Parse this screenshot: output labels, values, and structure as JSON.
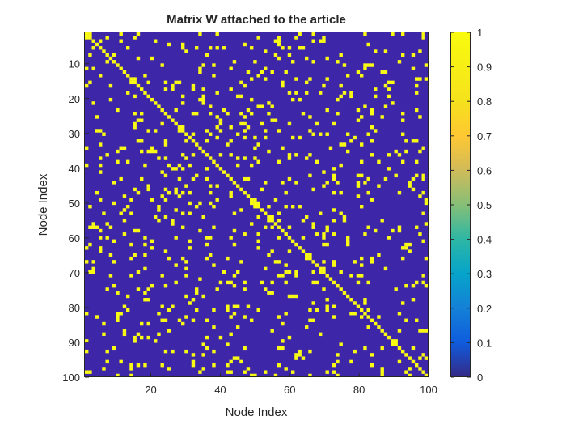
{
  "chart_data": {
    "type": "heatmap",
    "title": "Matrix W attached to the article",
    "xlabel": "Node Index",
    "ylabel": "Node Index",
    "size": 100,
    "xlim": [
      1,
      100
    ],
    "ylim": [
      1,
      100
    ],
    "x_ticks": [
      "20",
      "40",
      "60",
      "80",
      "100"
    ],
    "y_ticks": [
      "10",
      "20",
      "30",
      "40",
      "50",
      "60",
      "70",
      "80",
      "90",
      "100"
    ],
    "colorbar": {
      "range": [
        0,
        1
      ],
      "ticks": [
        "0",
        "0.1",
        "0.2",
        "0.3",
        "0.4",
        "0.5",
        "0.6",
        "0.7",
        "0.8",
        "0.9",
        "1"
      ]
    },
    "colormap": "parula",
    "low_color": "#3e26a8",
    "high_color": "#f9fb14",
    "values_present": [
      0,
      1
    ],
    "diagonal": 1,
    "density_offdiagonal": 0.075,
    "symmetric": true
  }
}
